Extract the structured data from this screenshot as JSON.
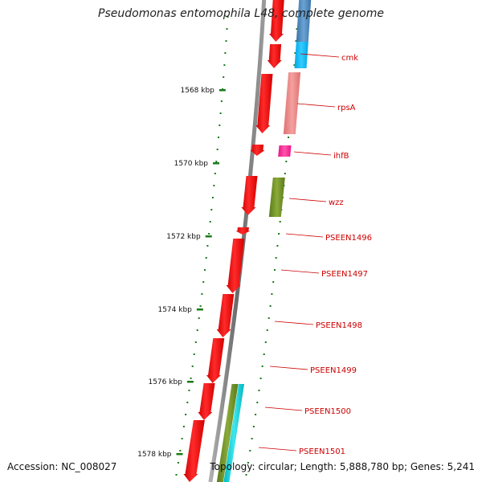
{
  "title": "Pseudomonas entomophila L48, complete genome",
  "footer": {
    "accession": "Accession: NC_008027",
    "summary": "Topology: circular; Length: 5,888,780 bp; Genes: 5,241"
  },
  "colors": {
    "backbone": "#808080",
    "tick": "#1a7a1a",
    "label": "#cc0000",
    "gene_red": "#ff0000",
    "steelblue": "#4682b4",
    "deepskyblue": "#00bfff",
    "lightcoral": "#f08080",
    "deeppink": "#ff1493",
    "olive": "#6b8e23",
    "cyan": "#00ced1"
  },
  "scale_labels": [
    "1568 kbp",
    "1570 kbp",
    "1572 kbp",
    "1574 kbp",
    "1576 kbp",
    "1578 kbp"
  ],
  "gene_labels": [
    {
      "id": "cmk",
      "text": "cmk"
    },
    {
      "id": "rpsA",
      "text": "rpsA"
    },
    {
      "id": "ihfB",
      "text": "ihfB"
    },
    {
      "id": "wzz",
      "text": "wzz"
    },
    {
      "id": "PSEEN1496",
      "text": "PSEEN1496"
    },
    {
      "id": "PSEEN1497",
      "text": "PSEEN1497"
    },
    {
      "id": "PSEEN1498",
      "text": "PSEEN1498"
    },
    {
      "id": "PSEEN1499",
      "text": "PSEEN1499"
    },
    {
      "id": "PSEEN1500",
      "text": "PSEEN1500"
    },
    {
      "id": "PSEEN1501",
      "text": "PSEEN1501"
    }
  ]
}
